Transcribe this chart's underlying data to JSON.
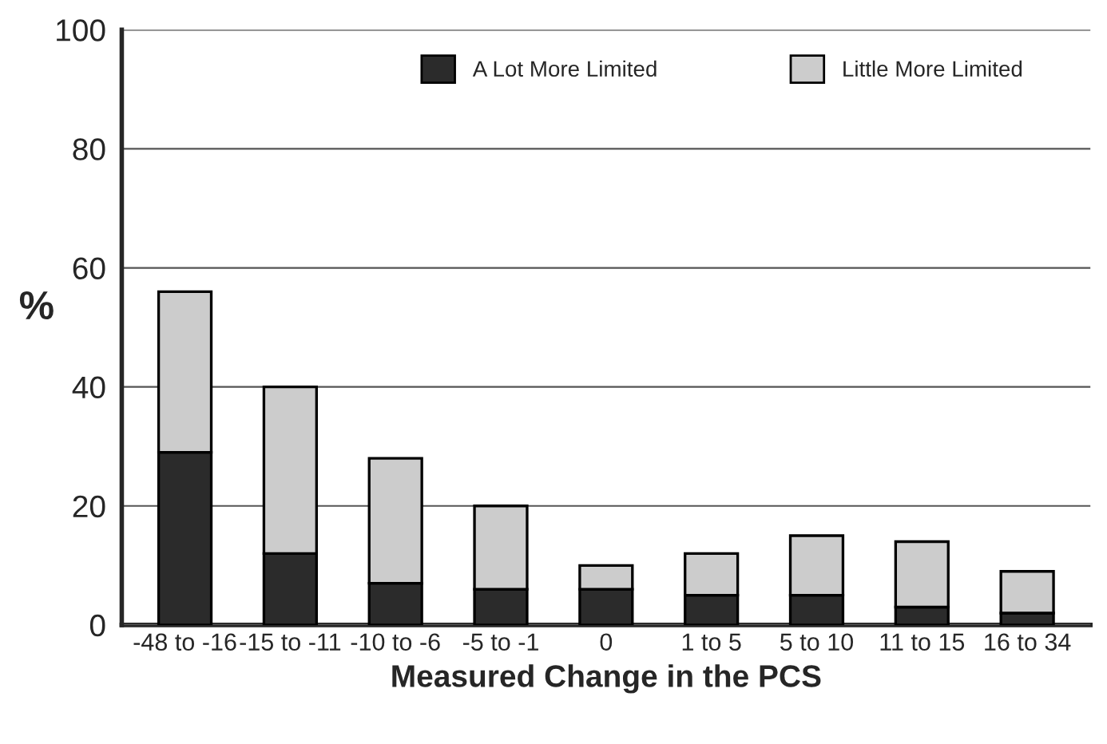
{
  "chart_data": {
    "type": "bar",
    "stacked": true,
    "xlabel": "Measured Change in the PCS",
    "ylabel": "%",
    "categories": [
      "-48 to -16",
      "-15 to -11",
      "-10 to -6",
      "-5 to -1",
      "0",
      "1 to 5",
      "5 to 10",
      "11 to 15",
      "16 to 34"
    ],
    "series": [
      {
        "name": "A Lot More Limited",
        "color": "#2b2b2b",
        "values": [
          29,
          12,
          7,
          6,
          6,
          5,
          5,
          3,
          2
        ]
      },
      {
        "name": "Little More Limited",
        "color": "#cccccc",
        "values": [
          27,
          28,
          21,
          14,
          4,
          7,
          10,
          11,
          7
        ]
      }
    ],
    "ylim": [
      0,
      100
    ],
    "yticks": [
      0,
      20,
      40,
      60,
      80,
      100
    ],
    "grid": "y",
    "legend": "top"
  }
}
